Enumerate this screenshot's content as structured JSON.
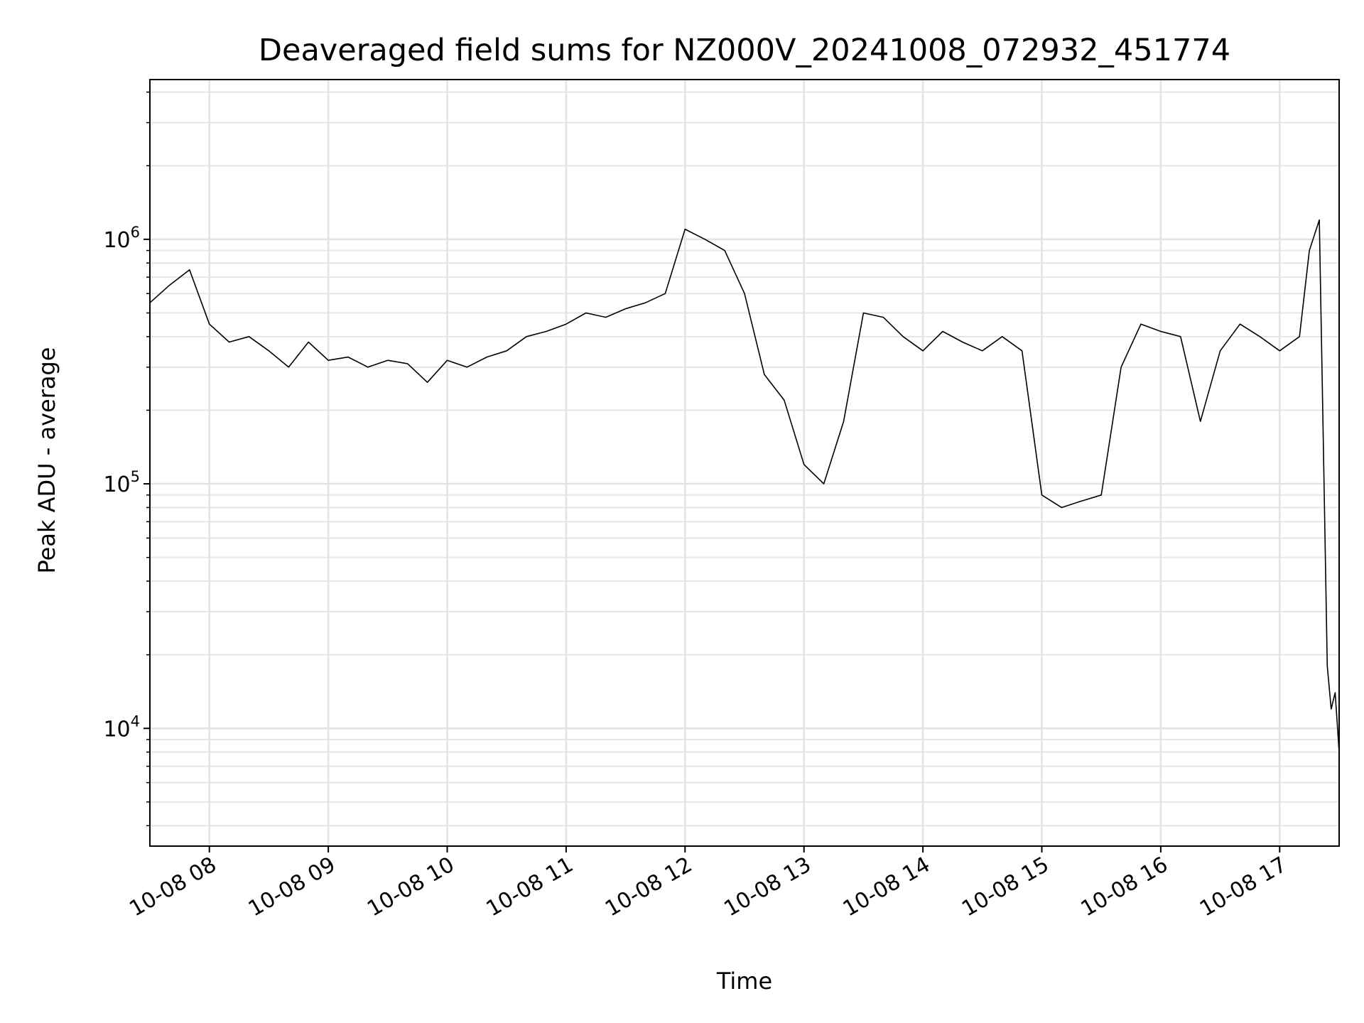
{
  "chart_data": {
    "type": "line",
    "title": "Deaveraged field sums for NZ000V_20241008_072932_451774",
    "xlabel": "Time",
    "ylabel": "Peak ADU - average",
    "yscale": "log",
    "ylim": [
      3300,
      4500000
    ],
    "xlim": [
      "2024-10-08 07:30",
      "2024-10-08 17:30"
    ],
    "x_ticks": [
      "10-08 08",
      "10-08 09",
      "10-08 10",
      "10-08 11",
      "10-08 12",
      "10-08 13",
      "10-08 14",
      "10-08 15",
      "10-08 16",
      "10-08 17"
    ],
    "y_ticks": [
      {
        "value": 10000,
        "base": "10",
        "exp": "4"
      },
      {
        "value": 100000,
        "base": "10",
        "exp": "5"
      },
      {
        "value": 1000000,
        "base": "10",
        "exp": "6"
      }
    ],
    "grid": true,
    "line_color": "#000000",
    "series": [
      {
        "x": [
          "07:30",
          "07:40",
          "07:50",
          "08:00",
          "08:10",
          "08:20",
          "08:30",
          "08:40",
          "08:50",
          "09:00",
          "09:10",
          "09:20",
          "09:30",
          "09:40",
          "09:50",
          "10:00",
          "10:10",
          "10:20",
          "10:30",
          "10:40",
          "10:50",
          "11:00",
          "11:10",
          "11:20",
          "11:30",
          "11:40",
          "11:50",
          "12:00",
          "12:10",
          "12:20",
          "12:30",
          "12:40",
          "12:50",
          "13:00",
          "13:10",
          "13:20",
          "13:30",
          "13:40",
          "13:50",
          "14:00",
          "14:10",
          "14:20",
          "14:30",
          "14:40",
          "14:50",
          "15:00",
          "15:10",
          "15:20",
          "15:30",
          "15:40",
          "15:50",
          "16:00",
          "16:10",
          "16:20",
          "16:30",
          "16:40",
          "16:50",
          "17:00",
          "17:10",
          "17:15",
          "17:20",
          "17:22",
          "17:24",
          "17:26",
          "17:28",
          "17:30"
        ],
        "values": [
          550000,
          650000,
          750000,
          450000,
          380000,
          400000,
          350000,
          300000,
          380000,
          320000,
          330000,
          300000,
          320000,
          310000,
          260000,
          320000,
          300000,
          330000,
          350000,
          400000,
          420000,
          450000,
          500000,
          480000,
          520000,
          550000,
          600000,
          1100000,
          1000000,
          900000,
          600000,
          280000,
          220000,
          120000,
          100000,
          180000,
          500000,
          480000,
          400000,
          350000,
          420000,
          380000,
          350000,
          400000,
          350000,
          90000,
          80000,
          85000,
          90000,
          300000,
          450000,
          420000,
          400000,
          180000,
          350000,
          450000,
          400000,
          350000,
          400000,
          900000,
          1200000,
          150000,
          18000,
          12000,
          14000,
          8000
        ]
      }
    ]
  }
}
